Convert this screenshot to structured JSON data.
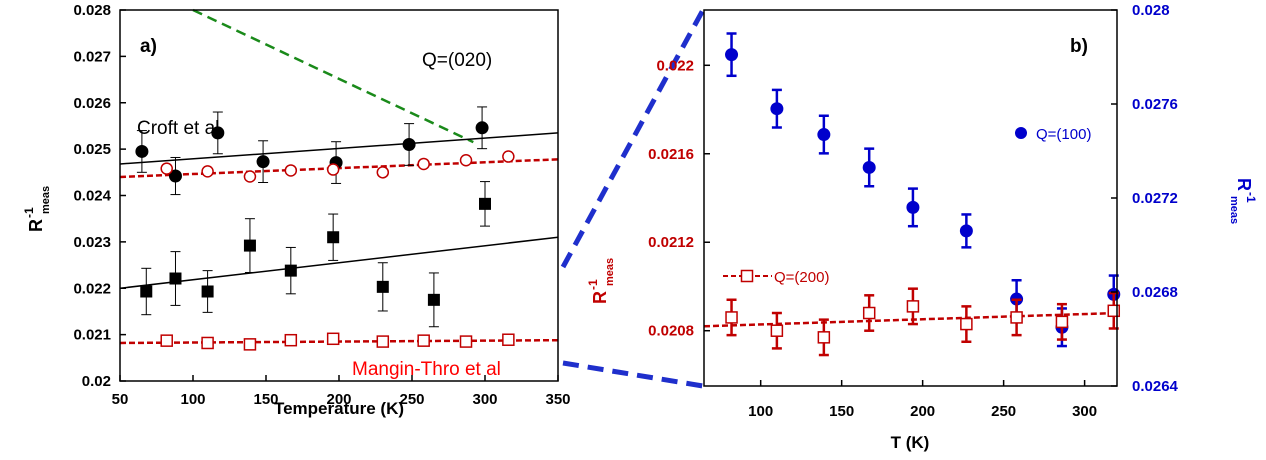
{
  "chart_data": [
    {
      "type": "scatter",
      "panel_label": "a)",
      "annotations": {
        "q": "Q=(020)",
        "croft": "Croft et al",
        "mangin": "Mangin-Thro et al"
      },
      "xlabel": "Temperature (K)",
      "ylabel": {
        "main": "R",
        "sup": "-1",
        "sub": "meas"
      },
      "xlim": [
        50,
        350
      ],
      "ylim": [
        0.02,
        0.028
      ],
      "x_ticks": [
        "50",
        "100",
        "150",
        "200",
        "250",
        "300",
        "350"
      ],
      "y_ticks": [
        "0.02",
        "0.021",
        "0.022",
        "0.023",
        "0.024",
        "0.025",
        "0.026",
        "0.027",
        "0.028"
      ],
      "series": [
        {
          "marker": "circle-filled",
          "color": "#000000",
          "points": [
            {
              "x": 65,
              "y": 0.02495,
              "err": 0.00045
            },
            {
              "x": 88,
              "y": 0.02442,
              "err": 0.0004
            },
            {
              "x": 117,
              "y": 0.02535,
              "err": 0.00045
            },
            {
              "x": 148,
              "y": 0.02473,
              "err": 0.00045
            },
            {
              "x": 198,
              "y": 0.02471,
              "err": 0.00045
            },
            {
              "x": 248,
              "y": 0.0251,
              "err": 0.00045
            },
            {
              "x": 298,
              "y": 0.02546,
              "err": 0.00045
            }
          ],
          "fit": {
            "x": [
              50,
              350
            ],
            "y": [
              0.02468,
              0.02535
            ],
            "style": "solid"
          }
        },
        {
          "marker": "square-filled",
          "color": "#000000",
          "points": [
            {
              "x": 68,
              "y": 0.02193,
              "err": 0.0005
            },
            {
              "x": 88,
              "y": 0.02221,
              "err": 0.00058
            },
            {
              "x": 110,
              "y": 0.02193,
              "err": 0.00045
            },
            {
              "x": 139,
              "y": 0.02292,
              "err": 0.00058
            },
            {
              "x": 167,
              "y": 0.02238,
              "err": 0.0005
            },
            {
              "x": 196,
              "y": 0.0231,
              "err": 0.0005
            },
            {
              "x": 230,
              "y": 0.02203,
              "err": 0.00052
            },
            {
              "x": 265,
              "y": 0.02175,
              "err": 0.00058
            },
            {
              "x": 300,
              "y": 0.02382,
              "err": 0.00048
            }
          ],
          "fit": {
            "x": [
              50,
              350
            ],
            "y": [
              0.022,
              0.0231
            ],
            "style": "solid"
          }
        },
        {
          "marker": "circle-open",
          "color": "#c00000",
          "points": [
            {
              "x": 82,
              "y": 0.02458,
              "err": 8e-05
            },
            {
              "x": 110,
              "y": 0.02452,
              "err": 8e-05
            },
            {
              "x": 139,
              "y": 0.02441,
              "err": 8e-05
            },
            {
              "x": 167,
              "y": 0.02454,
              "err": 8e-05
            },
            {
              "x": 196,
              "y": 0.02456,
              "err": 8e-05
            },
            {
              "x": 230,
              "y": 0.0245,
              "err": 8e-05
            },
            {
              "x": 258,
              "y": 0.02468,
              "err": 8e-05
            },
            {
              "x": 287,
              "y": 0.02476,
              "err": 8e-05
            },
            {
              "x": 316,
              "y": 0.02484,
              "err": 8e-05
            }
          ],
          "fit": {
            "x": [
              50,
              350
            ],
            "y": [
              0.0244,
              0.02478
            ],
            "style": "dashed"
          }
        },
        {
          "marker": "square-open",
          "color": "#c00000",
          "points": [
            {
              "x": 82,
              "y": 0.02087,
              "err": 6e-05
            },
            {
              "x": 110,
              "y": 0.02082,
              "err": 6e-05
            },
            {
              "x": 139,
              "y": 0.02079,
              "err": 6e-05
            },
            {
              "x": 167,
              "y": 0.02088,
              "err": 6e-05
            },
            {
              "x": 196,
              "y": 0.02091,
              "err": 6e-05
            },
            {
              "x": 230,
              "y": 0.02085,
              "err": 6e-05
            },
            {
              "x": 258,
              "y": 0.02087,
              "err": 6e-05
            },
            {
              "x": 287,
              "y": 0.02085,
              "err": 6e-05
            },
            {
              "x": 316,
              "y": 0.02089,
              "err": 6e-05
            }
          ],
          "fit": {
            "x": [
              50,
              350
            ],
            "y": [
              0.02082,
              0.02088
            ],
            "style": "dashed"
          }
        }
      ],
      "extra_lines": [
        {
          "x": [
            100,
            292
          ],
          "y": [
            0.028,
            0.02515
          ],
          "color": "#1a8a1a",
          "style": "dashed"
        }
      ]
    },
    {
      "type": "scatter",
      "panel_label": "b)",
      "xlabel": "T (K)",
      "ylabel_left": {
        "main": "R",
        "sup": "-1",
        "sub": "meas",
        "color": "#c00000"
      },
      "ylabel_right": {
        "main": "R",
        "sup": "-1",
        "sub": "meas",
        "color": "#0000cc"
      },
      "xlim": [
        65,
        320
      ],
      "ylim_left": [
        0.02055,
        0.02225
      ],
      "ylim_right": [
        0.0264,
        0.028
      ],
      "x_ticks": [
        "100",
        "150",
        "200",
        "250",
        "300"
      ],
      "y_ticks_left": [
        "0.0208",
        "0.0212",
        "0.0216",
        "0.022"
      ],
      "y_ticks_right": [
        "0.0264",
        "0.0268",
        "0.0272",
        "0.0276",
        "0.028"
      ],
      "legend": {
        "blue": "Q=(100)",
        "red": "Q=(200)"
      },
      "series": [
        {
          "name": "Q=(100)",
          "axis": "right",
          "marker": "circle-filled",
          "color": "#0000cc",
          "points": [
            {
              "x": 82,
              "y": 0.02781,
              "err": 9e-05
            },
            {
              "x": 110,
              "y": 0.02758,
              "err": 8e-05
            },
            {
              "x": 139,
              "y": 0.02747,
              "err": 8e-05
            },
            {
              "x": 167,
              "y": 0.02733,
              "err": 8e-05
            },
            {
              "x": 194,
              "y": 0.02716,
              "err": 8e-05
            },
            {
              "x": 227,
              "y": 0.02706,
              "err": 7e-05
            },
            {
              "x": 258,
              "y": 0.02677,
              "err": 8e-05
            },
            {
              "x": 286,
              "y": 0.02665,
              "err": 8e-05
            },
            {
              "x": 318,
              "y": 0.02679,
              "err": 8e-05
            }
          ]
        },
        {
          "name": "Q=(200)",
          "axis": "left",
          "marker": "square-open",
          "color": "#c00000",
          "points": [
            {
              "x": 82,
              "y": 0.02086,
              "err": 8e-05
            },
            {
              "x": 110,
              "y": 0.0208,
              "err": 8e-05
            },
            {
              "x": 139,
              "y": 0.02077,
              "err": 8e-05
            },
            {
              "x": 167,
              "y": 0.02088,
              "err": 8e-05
            },
            {
              "x": 194,
              "y": 0.02091,
              "err": 8e-05
            },
            {
              "x": 227,
              "y": 0.02083,
              "err": 8e-05
            },
            {
              "x": 258,
              "y": 0.02086,
              "err": 8e-05
            },
            {
              "x": 286,
              "y": 0.02084,
              "err": 8e-05
            },
            {
              "x": 318,
              "y": 0.02089,
              "err": 8e-05
            }
          ],
          "fit": {
            "x": [
              65,
              320
            ],
            "y": [
              0.02082,
              0.02088
            ],
            "style": "dashed"
          }
        }
      ]
    }
  ],
  "colors": {
    "axis": "#000000",
    "red": "#c00000",
    "blue": "#0000cc",
    "zoom": "#1f2fcc",
    "green": "#1a8a1a"
  }
}
